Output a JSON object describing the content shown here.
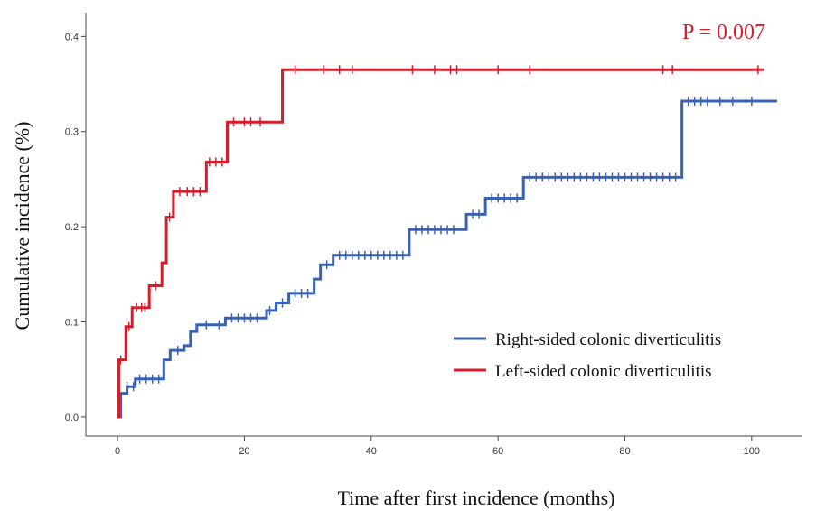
{
  "chart_data": {
    "type": "line",
    "title": "",
    "xlabel": "Time after first incidence (months)",
    "ylabel": "Cumulative incidence (%)",
    "xlim": [
      -5,
      108
    ],
    "ylim": [
      -0.02,
      0.425
    ],
    "xticks": [
      "0",
      "20",
      "40",
      "60",
      "80",
      "100"
    ],
    "yticks": [
      "0.0",
      "0.1",
      "0.2",
      "0.3",
      "0.4"
    ],
    "grid": false,
    "legend_position": "bottom-right",
    "annotation": {
      "text": "P = 0.007",
      "color": "#d91c2a"
    },
    "series": [
      {
        "name": "Right-sided colonic diverticulitis",
        "color": "#3a62b3",
        "steps": [
          [
            0,
            0.0
          ],
          [
            0.5,
            0.025
          ],
          [
            1.5,
            0.032
          ],
          [
            2.8,
            0.04
          ],
          [
            7.3,
            0.06
          ],
          [
            8.3,
            0.07
          ],
          [
            10.5,
            0.075
          ],
          [
            11.5,
            0.09
          ],
          [
            12.5,
            0.097
          ],
          [
            17.0,
            0.104
          ],
          [
            23.5,
            0.112
          ],
          [
            25.0,
            0.12
          ],
          [
            27.0,
            0.13
          ],
          [
            31.0,
            0.145
          ],
          [
            32.0,
            0.16
          ],
          [
            34.0,
            0.17
          ],
          [
            46.0,
            0.197
          ],
          [
            55.0,
            0.213
          ],
          [
            58.0,
            0.23
          ],
          [
            64.0,
            0.252
          ],
          [
            89.0,
            0.332
          ]
        ],
        "end": 104,
        "censor": [
          1.5,
          2.5,
          3.5,
          4.5,
          5.5,
          6.5,
          9.5,
          14,
          16,
          18,
          19,
          20,
          21,
          22,
          24,
          26,
          28,
          29,
          30,
          33,
          35,
          36,
          37,
          38,
          39,
          40,
          41,
          42,
          43,
          44,
          45,
          47,
          48,
          49,
          50,
          51,
          52,
          53,
          56,
          57,
          59,
          60,
          61,
          62,
          63,
          65,
          66,
          67,
          68,
          69,
          70,
          71,
          72,
          73,
          74,
          75,
          76,
          77,
          78,
          79,
          80,
          81,
          82,
          83,
          84,
          85,
          86,
          87,
          88,
          90,
          91,
          92,
          93,
          95,
          97,
          100
        ]
      },
      {
        "name": "Left-sided colonic diverticulitis",
        "color": "#d91c2a",
        "steps": [
          [
            0,
            0.0
          ],
          [
            0.2,
            0.06
          ],
          [
            1.3,
            0.095
          ],
          [
            2.3,
            0.115
          ],
          [
            5.0,
            0.138
          ],
          [
            7.0,
            0.162
          ],
          [
            7.7,
            0.21
          ],
          [
            8.8,
            0.237
          ],
          [
            14.0,
            0.268
          ],
          [
            17.3,
            0.31
          ],
          [
            26.0,
            0.365
          ]
        ],
        "end": 102,
        "censor": [
          0.5,
          1.8,
          3,
          3.8,
          4.3,
          6,
          8.2,
          9.8,
          11,
          12,
          13,
          14.5,
          15.5,
          16.5,
          18.3,
          20,
          21,
          22.5,
          28,
          32.5,
          35,
          37,
          46.5,
          50,
          52.5,
          53.5,
          60,
          65,
          86,
          87.5,
          101
        ]
      }
    ]
  }
}
